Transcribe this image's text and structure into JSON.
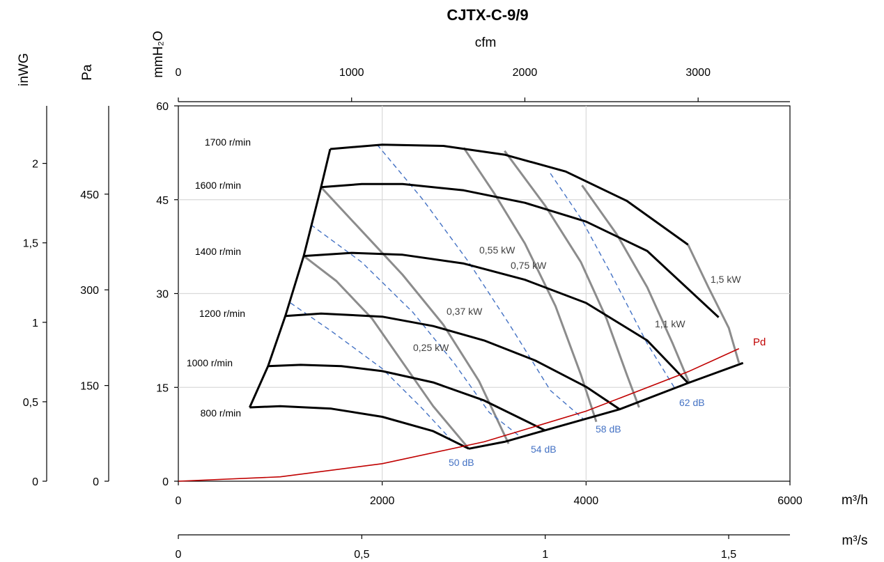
{
  "chart_data": {
    "type": "line",
    "title": "CJTX-C-9/9",
    "axes": {
      "x_primary": {
        "label": "m³/h",
        "range": [
          0,
          6000
        ],
        "ticks": [
          "0",
          "2000",
          "4000",
          "6000"
        ]
      },
      "x_top": {
        "label": "cfm",
        "range": [
          0,
          3530
        ],
        "ticks": [
          "0",
          "1000",
          "2000",
          "3000"
        ]
      },
      "x_bottom": {
        "label": "m³/s",
        "range": [
          0,
          1.667
        ],
        "ticks": [
          "0",
          "0,5",
          "1",
          "1,5"
        ]
      },
      "y_primary": {
        "label": "mmH₂O",
        "range": [
          0,
          60
        ],
        "ticks": [
          "0",
          "15",
          "30",
          "45",
          "60"
        ]
      },
      "y_pa": {
        "label": "Pa",
        "range": [
          0,
          588.4
        ],
        "ticks": [
          "0",
          "150",
          "300",
          "450"
        ]
      },
      "y_inwg": {
        "label": "inWG",
        "range": [
          0,
          2.362
        ],
        "ticks": [
          "0",
          "0,5",
          "1",
          "1,5",
          "2"
        ]
      }
    },
    "grid": true,
    "speed_curves": [
      {
        "name": "800 r/min",
        "points": [
          [
            700,
            11.8
          ],
          [
            1000,
            12
          ],
          [
            1500,
            11.6
          ],
          [
            2000,
            10.3
          ],
          [
            2500,
            8
          ],
          [
            2850,
            5.2
          ]
        ]
      },
      {
        "name": "1000 r/min",
        "points": [
          [
            880,
            18.4
          ],
          [
            1200,
            18.6
          ],
          [
            1600,
            18.4
          ],
          [
            2000,
            17.6
          ],
          [
            2500,
            15.8
          ],
          [
            3000,
            12.9
          ],
          [
            3600,
            8.1
          ]
        ]
      },
      {
        "name": "1200 r/min",
        "points": [
          [
            1050,
            26.4
          ],
          [
            1400,
            26.8
          ],
          [
            2000,
            26.3
          ],
          [
            2500,
            24.8
          ],
          [
            3000,
            22.5
          ],
          [
            3500,
            19.3
          ],
          [
            4000,
            15.1
          ],
          [
            4330,
            11.5
          ]
        ]
      },
      {
        "name": "1400 r/min",
        "points": [
          [
            1230,
            36
          ],
          [
            1700,
            36.5
          ],
          [
            2200,
            36.2
          ],
          [
            2800,
            34.8
          ],
          [
            3400,
            32.2
          ],
          [
            4000,
            28.5
          ],
          [
            4600,
            22.5
          ],
          [
            5000,
            15.7
          ]
        ]
      },
      {
        "name": "1600 r/min",
        "points": [
          [
            1400,
            47
          ],
          [
            1800,
            47.5
          ],
          [
            2200,
            47.5
          ],
          [
            2800,
            46.5
          ],
          [
            3400,
            44.5
          ],
          [
            4000,
            41.5
          ],
          [
            4600,
            36.8
          ],
          [
            5300,
            26.2
          ]
        ]
      },
      {
        "name": "1700 r/min",
        "points": [
          [
            1490,
            53.1
          ],
          [
            2000,
            53.8
          ],
          [
            2600,
            53.6
          ],
          [
            3200,
            52.2
          ],
          [
            3800,
            49.5
          ],
          [
            4400,
            44.8
          ],
          [
            5000,
            37.8
          ]
        ]
      }
    ],
    "power_lines": [
      {
        "name": "0,25 kW",
        "points": [
          [
            1230,
            36
          ],
          [
            1550,
            32
          ],
          [
            1900,
            26
          ],
          [
            2200,
            19
          ],
          [
            2500,
            12
          ],
          [
            2850,
            5.2
          ]
        ]
      },
      {
        "name": "0,37 kW",
        "points": [
          [
            1400,
            47
          ],
          [
            1800,
            40
          ],
          [
            2200,
            33
          ],
          [
            2600,
            25
          ],
          [
            2950,
            16
          ],
          [
            3240,
            6
          ]
        ]
      },
      {
        "name": "0,55 kW",
        "points": [
          [
            2800,
            53.3
          ],
          [
            3100,
            46
          ],
          [
            3400,
            38
          ],
          [
            3700,
            28
          ],
          [
            3950,
            17
          ],
          [
            4100,
            9.5
          ]
        ]
      },
      {
        "name": "0,75 kW",
        "points": [
          [
            3200,
            52.8
          ],
          [
            3600,
            44
          ],
          [
            3950,
            35
          ],
          [
            4200,
            26
          ],
          [
            4400,
            17
          ],
          [
            4520,
            11.8
          ]
        ]
      },
      {
        "name": "1,1 kW",
        "points": [
          [
            3960,
            47.3
          ],
          [
            4300,
            39.5
          ],
          [
            4600,
            31
          ],
          [
            4850,
            22
          ],
          [
            5010,
            15.8
          ]
        ]
      },
      {
        "name": "1,5 kW",
        "points": [
          [
            5000,
            37.8
          ],
          [
            5200,
            31
          ],
          [
            5400,
            24.5
          ],
          [
            5500,
            18.9
          ]
        ]
      }
    ],
    "sound_lines": [
      {
        "name": "50 dB",
        "points": [
          [
            1100,
            28.5
          ],
          [
            1500,
            24
          ],
          [
            2000,
            18
          ],
          [
            2400,
            11.5
          ],
          [
            2700,
            6.2
          ]
        ]
      },
      {
        "name": "54 dB",
        "points": [
          [
            1300,
            41
          ],
          [
            1800,
            35
          ],
          [
            2300,
            27
          ],
          [
            2700,
            19
          ],
          [
            3050,
            11
          ],
          [
            3340,
            7.3
          ]
        ]
      },
      {
        "name": "58 dB",
        "points": [
          [
            1950,
            53.8
          ],
          [
            2400,
            45
          ],
          [
            2850,
            35
          ],
          [
            3250,
            25
          ],
          [
            3650,
            14.5
          ],
          [
            3970,
            10
          ]
        ]
      },
      {
        "name": "62 dB",
        "points": [
          [
            3650,
            49.2
          ],
          [
            3950,
            42
          ],
          [
            4250,
            33
          ],
          [
            4600,
            22
          ],
          [
            4880,
            14.6
          ]
        ]
      }
    ],
    "system_curve": {
      "points": [
        [
          2850,
          5.2
        ],
        [
          3200,
          6.3
        ],
        [
          3700,
          8.6
        ],
        [
          4330,
          11.5
        ],
        [
          5000,
          15.7
        ],
        [
          5540,
          18.9
        ]
      ]
    },
    "pd_curve": {
      "name": "Pd",
      "points": [
        [
          0,
          0
        ],
        [
          1000,
          0.7
        ],
        [
          2000,
          2.8
        ],
        [
          3000,
          6.3
        ],
        [
          4000,
          11.2
        ],
        [
          5000,
          17.5
        ],
        [
          5500,
          21.2
        ]
      ]
    }
  }
}
